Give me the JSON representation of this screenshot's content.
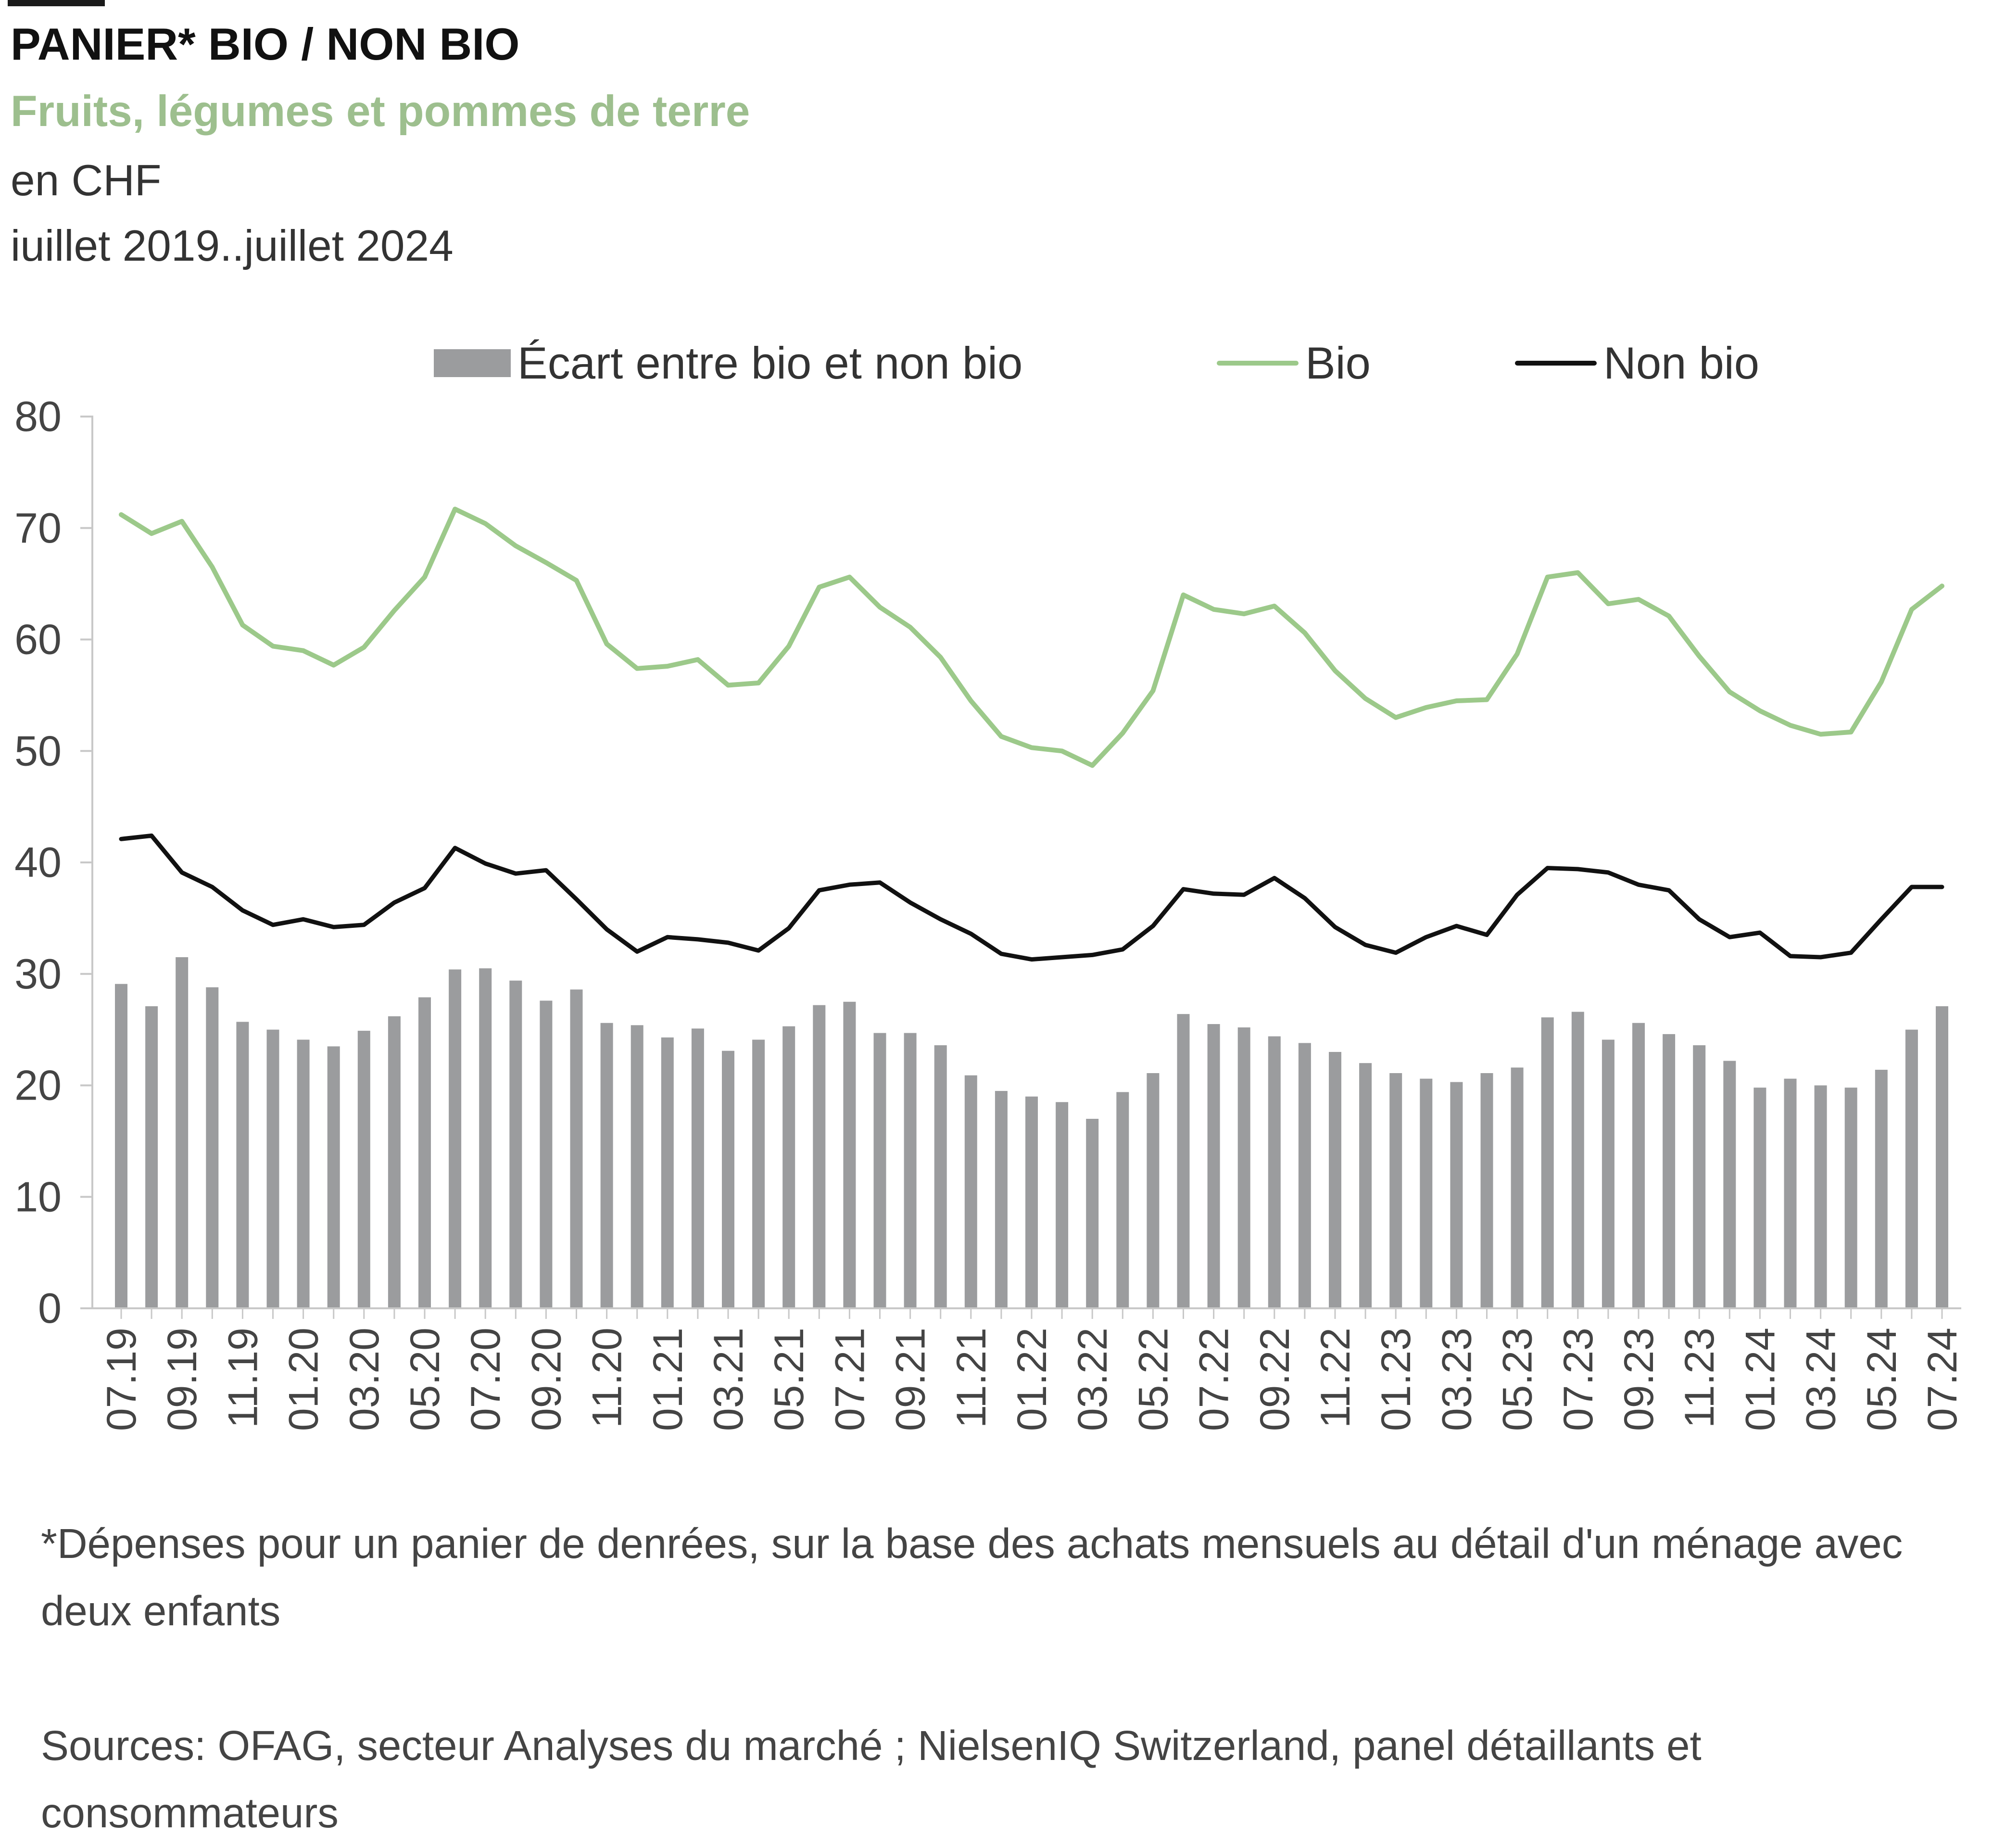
{
  "header": {
    "title": "PANIER* BIO / NON BIO",
    "subtitle": "Fruits, légumes et pommes de terre",
    "unit": "en CHF",
    "period": "iuillet 2019..juillet 2024"
  },
  "footer": {
    "footnote": "*Dépenses pour un panier de denrées, sur la base des achats mensuels au détail d'un ménage avec deux enfants",
    "sources": "Sources: OFAG, secteur Analyses du marché ; NielsenIQ Switzerland, panel détaillants et consommateurs"
  },
  "chart_data": {
    "type": "bar",
    "title": "PANIER* BIO / NON BIO",
    "xlabel": "",
    "ylabel": "",
    "ylim": [
      0,
      80
    ],
    "yticks": [
      0,
      10,
      20,
      30,
      40,
      50,
      60,
      70,
      80
    ],
    "grid": false,
    "legend_position": "top-center",
    "categories": [
      "07.19",
      "08.19",
      "09.19",
      "10.19",
      "11.19",
      "12.19",
      "01.20",
      "02.20",
      "03.20",
      "04.20",
      "05.20",
      "06.20",
      "07.20",
      "08.20",
      "09.20",
      "10.20",
      "11.20",
      "12.20",
      "01.21",
      "02.21",
      "03.21",
      "04.21",
      "05.21",
      "06.21",
      "07.21",
      "08.21",
      "09.21",
      "10.21",
      "11.21",
      "12.21",
      "01.22",
      "02.22",
      "03.22",
      "04.22",
      "05.22",
      "06.22",
      "07.22",
      "08.22",
      "09.22",
      "10.22",
      "11.22",
      "12.22",
      "01.23",
      "02.23",
      "03.23",
      "04.23",
      "05.23",
      "06.23",
      "07.23",
      "08.23",
      "09.23",
      "10.23",
      "11.23",
      "12.23",
      "01.24",
      "02.24",
      "03.24",
      "04.24",
      "05.24",
      "06.24",
      "07.24"
    ],
    "tick_labels": [
      "07.19",
      "09.19",
      "11.19",
      "01.20",
      "03.20",
      "05.20",
      "07.20",
      "09.20",
      "11.20",
      "01.21",
      "03.21",
      "05.21",
      "07.21",
      "09.21",
      "11.21",
      "01.22",
      "03.22",
      "05.22",
      "07.22",
      "09.22",
      "11.22",
      "01.23",
      "03.23",
      "05.23",
      "07.23",
      "09.23",
      "11.23",
      "01.24",
      "03.24",
      "05.24",
      "07.24"
    ],
    "series": [
      {
        "name": "Écart entre bio et non bio",
        "type": "bar",
        "color": "#9b9c9e",
        "values": [
          29.1,
          27.1,
          31.5,
          28.8,
          25.7,
          25.0,
          24.1,
          23.5,
          24.9,
          26.2,
          27.9,
          30.4,
          30.5,
          29.4,
          27.6,
          28.6,
          25.6,
          25.4,
          24.3,
          25.1,
          23.1,
          24.1,
          25.3,
          27.2,
          27.5,
          24.7,
          24.7,
          23.6,
          20.9,
          19.5,
          19.0,
          18.5,
          17.0,
          19.4,
          21.1,
          26.4,
          25.5,
          25.2,
          24.4,
          23.8,
          23.0,
          22.0,
          21.1,
          20.6,
          20.3,
          21.1,
          21.6,
          26.1,
          26.6,
          24.1,
          25.6,
          24.6,
          23.6,
          22.2,
          19.8,
          20.6,
          20.0,
          19.8,
          21.4,
          25.0,
          27.1
        ]
      },
      {
        "name": "Bio",
        "type": "line",
        "color": "#9cc98a",
        "values": [
          71.2,
          69.5,
          70.6,
          66.5,
          61.3,
          59.4,
          59.0,
          57.7,
          59.3,
          62.6,
          65.6,
          71.7,
          70.4,
          68.4,
          66.9,
          65.3,
          59.6,
          57.4,
          57.6,
          58.2,
          55.9,
          56.1,
          59.4,
          64.7,
          65.6,
          62.9,
          61.1,
          58.4,
          54.5,
          51.3,
          50.3,
          50.0,
          48.7,
          51.6,
          55.4,
          64.0,
          62.7,
          62.3,
          63.0,
          60.6,
          57.2,
          54.7,
          53.0,
          53.9,
          54.5,
          54.6,
          58.7,
          65.6,
          66.0,
          63.2,
          63.6,
          62.1,
          58.5,
          55.3,
          53.6,
          52.3,
          51.5,
          51.7,
          56.2,
          62.7,
          64.8
        ]
      },
      {
        "name": "Non bio",
        "type": "line",
        "color": "#111111",
        "values": [
          42.1,
          42.4,
          39.1,
          37.8,
          35.7,
          34.4,
          34.9,
          34.2,
          34.4,
          36.4,
          37.7,
          41.3,
          39.9,
          39.0,
          39.3,
          36.7,
          34.0,
          32.0,
          33.3,
          33.1,
          32.8,
          32.1,
          34.1,
          37.5,
          38.0,
          38.2,
          36.4,
          34.9,
          33.6,
          31.8,
          31.3,
          31.5,
          31.7,
          32.2,
          34.3,
          37.6,
          37.2,
          37.1,
          38.6,
          36.8,
          34.2,
          32.6,
          31.9,
          33.3,
          34.3,
          33.5,
          37.1,
          39.5,
          39.4,
          39.1,
          38.0,
          37.5,
          34.9,
          33.3,
          33.7,
          31.6,
          31.5,
          31.9,
          34.9,
          37.8,
          37.8
        ]
      }
    ]
  }
}
